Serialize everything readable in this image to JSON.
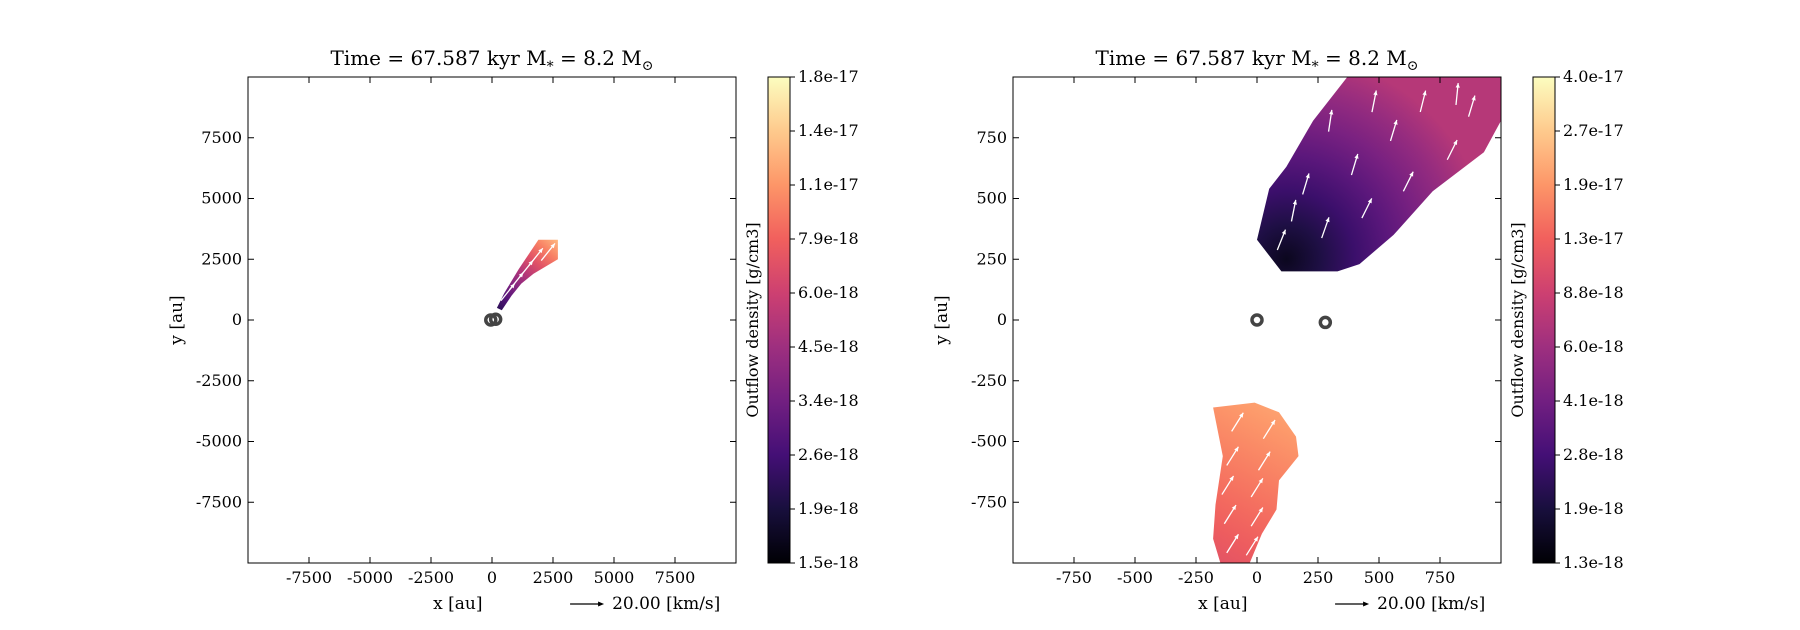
{
  "colormap": [
    "#000004",
    "#180f3d",
    "#440f76",
    "#721f81",
    "#9e2f7f",
    "#cd4071",
    "#f1605d",
    "#fd9668",
    "#feca8d",
    "#fcfdbf"
  ],
  "arrow_color": "#ffffff",
  "star_marker_color": "#444444",
  "chart_data": [
    {
      "type": "heatmap",
      "title": "Time = 67.587 kyr    M",
      "title_sub": "*",
      "title_tail": " = 8.2 M",
      "title_sun": "⊙",
      "xlabel": "x [au]",
      "ylabel": "y [au]",
      "xlim": [
        -10000,
        10000
      ],
      "ylim": [
        -10000,
        10000
      ],
      "xticks": [
        -7500,
        -5000,
        -2500,
        0,
        2500,
        5000,
        7500
      ],
      "yticks": [
        -7500,
        -5000,
        -2500,
        0,
        2500,
        5000,
        7500
      ],
      "xtick_labels": [
        "-7500",
        "-5000",
        "-2500",
        "0",
        "2500",
        "5000",
        "7500"
      ],
      "ytick_labels": [
        "-7500",
        "-5000",
        "-2500",
        "0",
        "2500",
        "5000",
        "7500"
      ],
      "quiver_key_label": "20.00 [km/s]",
      "colorbar": {
        "label": "Outflow density [g/cm3]",
        "tick_labels": [
          "1.8e-17",
          "1.4e-17",
          "1.1e-17",
          "7.9e-18",
          "6.0e-18",
          "4.5e-18",
          "3.4e-18",
          "2.6e-18",
          "1.9e-18",
          "1.5e-18"
        ]
      },
      "stars": [
        [
          -50,
          0
        ],
        [
          150,
          30
        ]
      ],
      "regions": [
        {
          "outline": [
            [
              200,
              500
            ],
            [
              500,
              1100
            ],
            [
              800,
              1600
            ],
            [
              1100,
              2100
            ],
            [
              1500,
              2700
            ],
            [
              1900,
              3300
            ],
            [
              2700,
              3300
            ],
            [
              2700,
              2500
            ],
            [
              2200,
              2200
            ],
            [
              1700,
              1900
            ],
            [
              1200,
              1500
            ],
            [
              800,
              1000
            ],
            [
              400,
              400
            ]
          ],
          "c0": 0.15,
          "c1": 0.85,
          "gradient": "along",
          "quiver": [
            [
              650,
              1150,
              0.8,
              1.0
            ],
            [
              1000,
              1600,
              0.8,
              1.0
            ],
            [
              1400,
              2100,
              0.8,
              1.0
            ],
            [
              1800,
              2600,
              0.8,
              1.0
            ],
            [
              2300,
              2800,
              0.8,
              1.0
            ]
          ]
        }
      ]
    },
    {
      "type": "heatmap",
      "title": "Time = 67.587 kyr    M",
      "title_sub": "*",
      "title_tail": " = 8.2 M",
      "title_sun": "⊙",
      "xlabel": "x [au]",
      "ylabel": "y [au]",
      "xlim": [
        -1000,
        1000
      ],
      "ylim": [
        -1000,
        1000
      ],
      "xticks": [
        -750,
        -500,
        -250,
        0,
        250,
        500,
        750
      ],
      "yticks": [
        -750,
        -500,
        -250,
        0,
        250,
        500,
        750
      ],
      "xtick_labels": [
        "-750",
        "-500",
        "-250",
        "0",
        "250",
        "500",
        "750"
      ],
      "ytick_labels": [
        "-750",
        "-500",
        "-250",
        "0",
        "250",
        "500",
        "750"
      ],
      "quiver_key_label": "20.00 [km/s]",
      "colorbar": {
        "label": "Outflow density [g/cm3]",
        "tick_labels": [
          "4.0e-17",
          "2.7e-17",
          "1.9e-17",
          "1.3e-17",
          "8.8e-18",
          "6.0e-18",
          "4.1e-18",
          "2.8e-18",
          "1.9e-18",
          "1.3e-18"
        ]
      },
      "stars": [
        [
          0,
          0
        ],
        [
          280,
          -10
        ]
      ],
      "regions": [
        {
          "outline": [
            [
              0,
              330
            ],
            [
              50,
              540
            ],
            [
              120,
              630
            ],
            [
              230,
              820
            ],
            [
              370,
              1000
            ],
            [
              1000,
              1000
            ],
            [
              1000,
              820
            ],
            [
              930,
              690
            ],
            [
              720,
              530
            ],
            [
              560,
              350
            ],
            [
              420,
              230
            ],
            [
              330,
              200
            ],
            [
              100,
              200
            ]
          ],
          "c0": 0.05,
          "c1": 0.5,
          "gradient": "radial-top",
          "quiver": [
            [
              100,
              330,
              0.4,
              1.0
            ],
            [
              280,
              380,
              0.35,
              1.0
            ],
            [
              450,
              460,
              0.5,
              1.0
            ],
            [
              620,
              570,
              0.5,
              1.0
            ],
            [
              800,
              700,
              0.5,
              1.0
            ],
            [
              200,
              560,
              0.3,
              1.0
            ],
            [
              400,
              640,
              0.3,
              1.0
            ],
            [
              560,
              780,
              0.3,
              1.0
            ],
            [
              300,
              820,
              0.15,
              1.0
            ],
            [
              480,
              900,
              0.2,
              1.0
            ],
            [
              680,
              900,
              0.25,
              1.0
            ],
            [
              880,
              880,
              0.3,
              1.0
            ],
            [
              150,
              450,
              0.2,
              1.0
            ],
            [
              820,
              930,
              0.1,
              1.0
            ]
          ]
        },
        {
          "outline": [
            [
              -180,
              -360
            ],
            [
              -10,
              -340
            ],
            [
              90,
              -380
            ],
            [
              160,
              -480
            ],
            [
              170,
              -560
            ],
            [
              90,
              -660
            ],
            [
              80,
              -780
            ],
            [
              20,
              -880
            ],
            [
              -30,
              -1000
            ],
            [
              -150,
              -1000
            ],
            [
              -180,
              -900
            ],
            [
              -170,
              -760
            ],
            [
              -140,
              -560
            ]
          ],
          "c0": 0.62,
          "c1": 0.82,
          "gradient": "along",
          "quiver": [
            [
              -80,
              -420,
              0.5,
              0.8
            ],
            [
              50,
              -450,
              0.5,
              0.8
            ],
            [
              -100,
              -560,
              0.5,
              0.8
            ],
            [
              30,
              -580,
              0.5,
              0.8
            ],
            [
              -120,
              -680,
              0.5,
              0.8
            ],
            [
              0,
              -690,
              0.5,
              0.8
            ],
            [
              -110,
              -800,
              0.5,
              0.8
            ],
            [
              0,
              -810,
              0.5,
              0.8
            ],
            [
              -100,
              -920,
              0.5,
              0.8
            ],
            [
              -20,
              -930,
              0.5,
              0.8
            ]
          ]
        }
      ]
    }
  ]
}
